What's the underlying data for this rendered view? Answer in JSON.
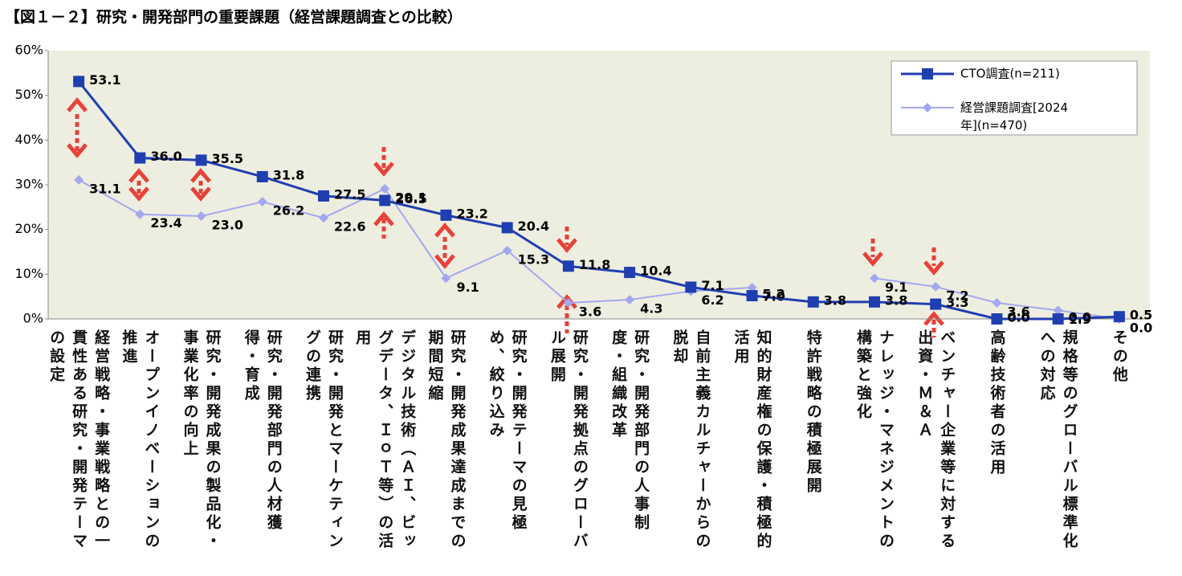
{
  "chart_data": {
    "type": "line",
    "title": "【図１－２】研究・開発部門の重要課題（経営課題調査との比較）",
    "categories": [
      "経営戦略・事業戦略との一貫性ある研究・開発テーマの設定",
      "オープンイノベーションの推進",
      "研究・開発成果の製品化・事業化率の向上",
      "研究・開発部門の人材獲得・育成",
      "研究・開発とマーケティングの連携",
      "デジタル技術（ＡＩ、ビッグデータ、ＩｏＴ等）の活用",
      "研究・開発成果達成までの期間短縮",
      "研究・開発テーマの見極め、絞り込み",
      "研究・開発拠点のグローバル展開",
      "研究・開発部門の人事制度・組織改革",
      "自前主義カルチャーからの脱却",
      "知的財産権の保護・積極的活用",
      "特許戦略の積極展開",
      "ナレッジ・マネジメントの構築と強化",
      "ベンチャー企業等に対する出資・Ｍ＆Ａ",
      "高齢技術者の活用",
      "規格等のグローバル標準化への対応",
      "その他"
    ],
    "series": [
      {
        "name": "CTO調査(n=211)",
        "color": "#1f3fb0",
        "marker": "square",
        "values": [
          53.1,
          36.0,
          35.5,
          31.8,
          27.5,
          26.5,
          23.2,
          20.4,
          11.8,
          10.4,
          7.1,
          5.2,
          3.8,
          3.8,
          3.3,
          0.0,
          0.0,
          0.5
        ],
        "value_labels": [
          "53.1",
          "36.0",
          "35.5",
          "31.8",
          "27.5",
          "26.5",
          "23.2",
          "20.4",
          "11.8",
          "10.4",
          "7.1",
          "5.2",
          "3.8",
          "3.8",
          "3.3",
          "0.0",
          "0.0",
          "0.5"
        ]
      },
      {
        "name": "経営課題調査[2024年](n=470)",
        "color": "#a3a8ee",
        "marker": "diamond",
        "values": [
          31.1,
          23.4,
          23.0,
          26.2,
          22.6,
          29.1,
          9.1,
          15.3,
          3.6,
          4.3,
          6.2,
          7.0,
          null,
          9.1,
          7.2,
          3.6,
          1.9,
          0.0
        ],
        "value_labels": [
          "31.1",
          "23.4",
          "23.0",
          "26.2",
          "22.6",
          "29.1",
          "9.1",
          "15.3",
          "3.6",
          "4.3",
          "6.2",
          "7.0",
          null,
          "9.1",
          "7.2",
          "3.6",
          "1.9",
          "0.0"
        ]
      }
    ],
    "ylim": [
      0,
      60
    ],
    "yticks": [
      {
        "value": 0,
        "label": "0%"
      },
      {
        "value": 10,
        "label": "10%"
      },
      {
        "value": 20,
        "label": "20%"
      },
      {
        "value": 30,
        "label": "30%"
      },
      {
        "value": 40,
        "label": "40%"
      },
      {
        "value": 50,
        "label": "50%"
      },
      {
        "value": 60,
        "label": "60%"
      }
    ],
    "grid": false,
    "legend": "upper right"
  }
}
